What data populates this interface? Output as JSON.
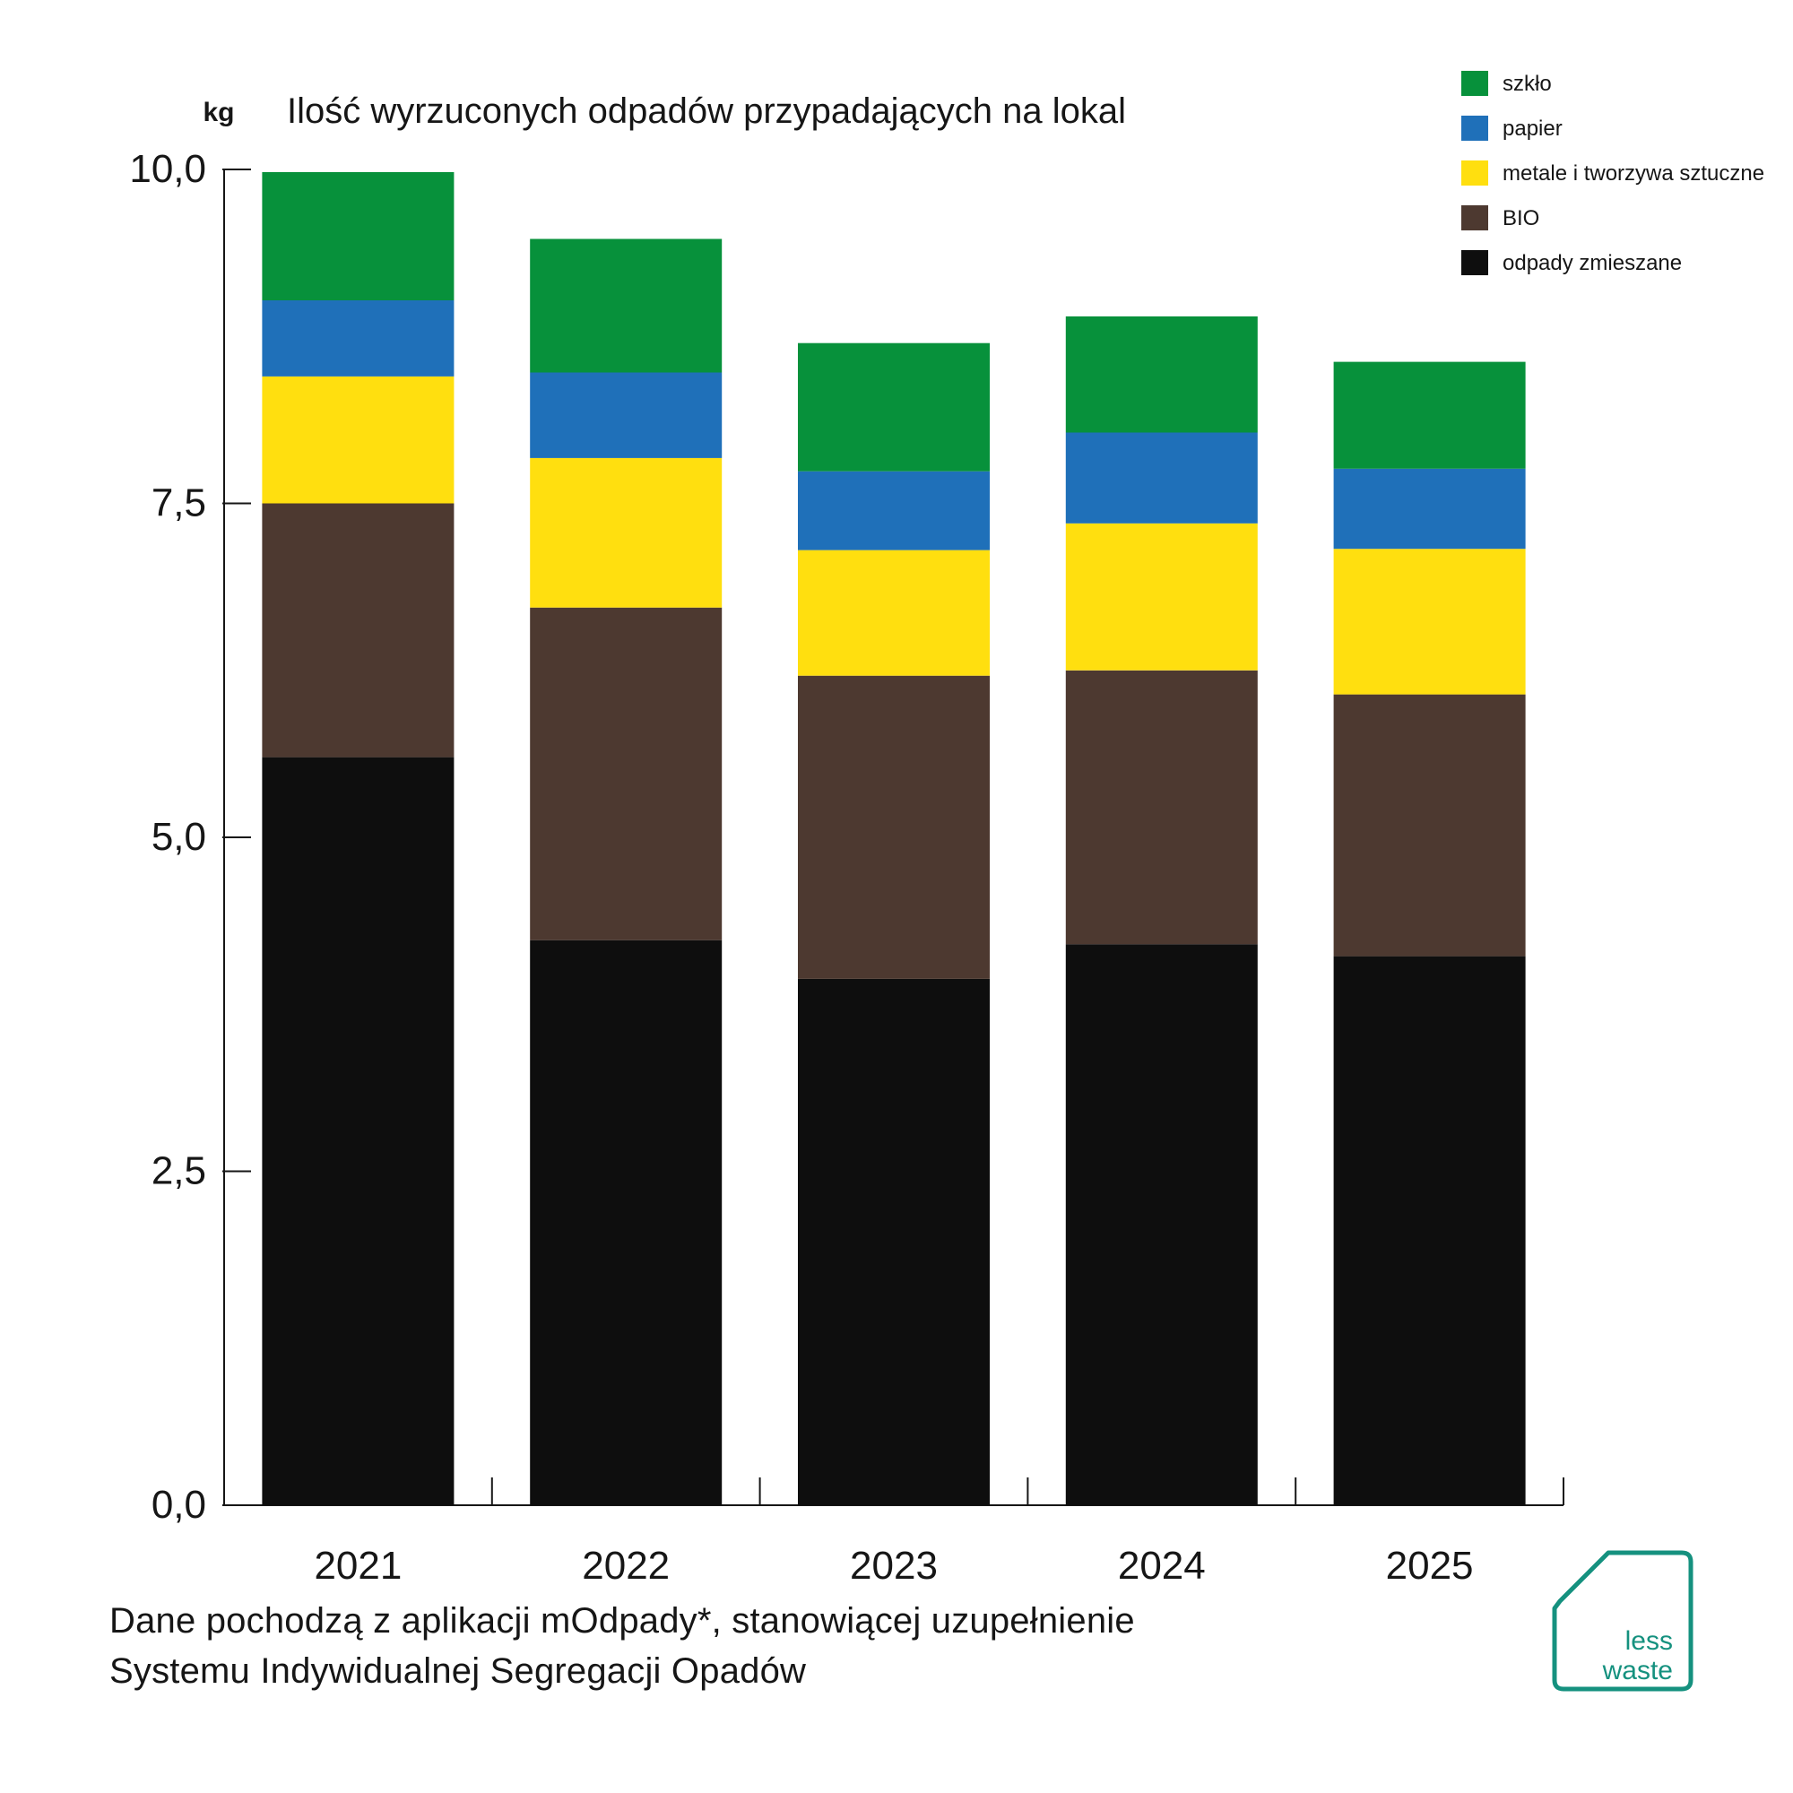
{
  "chart_data": {
    "type": "bar",
    "stacked": true,
    "title": "Ilość wyrzuconych odpadów przypadających na lokal",
    "ylabel": "kg",
    "ylim": [
      0,
      10
    ],
    "yticks": [
      "10,0",
      "7,5",
      "5,0",
      "2,5",
      "0,0"
    ],
    "ytick_values": [
      10,
      7.5,
      5,
      2.5,
      0
    ],
    "categories": [
      "2021",
      "2022",
      "2023",
      "2024",
      "2025"
    ],
    "legend_position": "top-right",
    "series": [
      {
        "name": "odpady zmieszane",
        "color": "#0e0e0e",
        "values": [
          5.6,
          4.23,
          3.94,
          4.2,
          4.11
        ]
      },
      {
        "name": "BIO",
        "color": "#4d3930",
        "values": [
          1.9,
          2.49,
          2.27,
          2.05,
          1.96
        ]
      },
      {
        "name": "metale i tworzywa sztuczne",
        "color": "#ffdf0f",
        "values": [
          0.95,
          1.12,
          0.94,
          1.1,
          1.09
        ]
      },
      {
        "name": "papier",
        "color": "#1f70b9",
        "values": [
          0.57,
          0.64,
          0.59,
          0.68,
          0.6
        ]
      },
      {
        "name": "szkło",
        "color": "#07913b",
        "values": [
          0.96,
          1.0,
          0.96,
          0.87,
          0.8
        ]
      }
    ],
    "legend_order": [
      "szkło",
      "papier",
      "metale i tworzywa sztuczne",
      "BIO",
      "odpady zmieszane"
    ]
  },
  "footnote": {
    "line1": "Dane pochodzą z aplikacji mOdpady*, stanowiącej uzupełnienie",
    "line2": "Systemu Indywidualnej Segregacji Opadów"
  },
  "logo": {
    "line1": "less",
    "line2": "waste",
    "color": "#15917f"
  }
}
